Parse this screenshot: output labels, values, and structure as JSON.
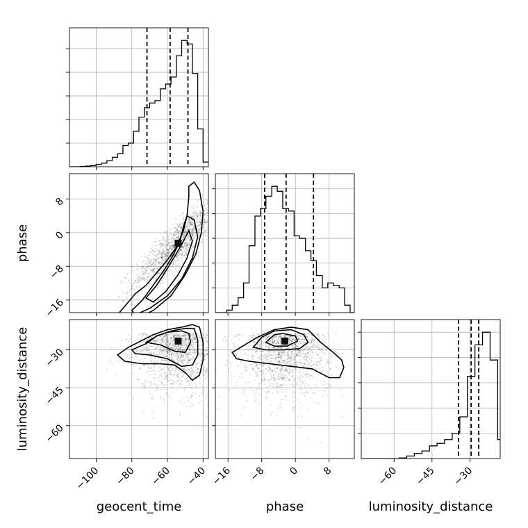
{
  "chart_data": {
    "type": "corner",
    "parameters": [
      "geocent_time",
      "phase",
      "luminosity_distance"
    ],
    "axes": {
      "geocent_time": {
        "range": [
          -115,
          -37
        ],
        "ticks": [
          -100,
          -80,
          -60,
          -40
        ],
        "tick_labels": [
          "−100",
          "−80",
          "−60",
          "−40"
        ],
        "quantiles": [
          -71.5,
          -58.5,
          -48.5
        ],
        "mode": -54
      },
      "phase": {
        "range": [
          -19,
          14
        ],
        "ticks": [
          -16,
          -8,
          0,
          8
        ],
        "tick_labels": [
          "−16",
          "−8",
          "0",
          "8"
        ],
        "quantiles": [
          -7.3,
          -2.2,
          4.3
        ],
        "mode": -2.5
      },
      "luminosity_distance": {
        "range": [
          -73,
          -18
        ],
        "ticks": [
          -60,
          -45,
          -30
        ],
        "tick_labels": [
          "−60",
          "−45",
          "−30"
        ],
        "quantiles": [
          -34.5,
          -29.5,
          -26.5
        ],
        "mode": -26.5
      }
    },
    "histograms": {
      "geocent_time": {
        "edges": [
          -115,
          -112,
          -109,
          -106,
          -103,
          -100,
          -97,
          -94,
          -91,
          -88,
          -85,
          -82,
          -79,
          -76,
          -73,
          -70,
          -67,
          -64,
          -61,
          -58,
          -55,
          -52,
          -49,
          -46,
          -43,
          -40,
          -37
        ],
        "counts": [
          0,
          0,
          1,
          3,
          5,
          10,
          15,
          25,
          40,
          55,
          90,
          100,
          150,
          210,
          250,
          270,
          280,
          330,
          350,
          380,
          470,
          535,
          520,
          395,
          160,
          20
        ]
      },
      "phase": {
        "edges": [
          -19,
          -17.6,
          -16.3,
          -15,
          -13.6,
          -12.3,
          -11,
          -9.6,
          -8.3,
          -7,
          -5.6,
          -4.3,
          -3,
          -1.6,
          -0.3,
          1,
          2.4,
          3.7,
          5,
          6.4,
          7.7,
          9,
          10.4,
          11.7,
          13,
          14.3
        ],
        "counts": [
          0,
          0,
          10,
          30,
          60,
          120,
          270,
          390,
          420,
          470,
          510,
          490,
          420,
          410,
          310,
          300,
          250,
          210,
          150,
          100,
          120,
          110,
          100,
          30,
          0
        ]
      },
      "luminosity_distance": {
        "edges": [
          -73,
          -70,
          -67,
          -64,
          -61,
          -58,
          -55,
          -52,
          -49,
          -46,
          -43,
          -40,
          -37,
          -34,
          -31,
          -28,
          -25,
          -22,
          -19,
          -16
        ],
        "counts": [
          0,
          0,
          0,
          0,
          0,
          5,
          20,
          40,
          60,
          100,
          120,
          150,
          200,
          330,
          650,
          900,
          1000,
          780,
          150
        ]
      }
    },
    "contours": {
      "phase_vs_geocent_time": {
        "levels": [
          [
            [
              -88,
              -19.5
            ],
            [
              -82,
              -16.5
            ],
            [
              -78,
              -14.5
            ],
            [
              -72,
              -12.5
            ],
            [
              -66,
              -9.5
            ],
            [
              -60,
              -6.5
            ],
            [
              -55,
              -3.5
            ],
            [
              -51,
              0.5
            ],
            [
              -49,
              4
            ],
            [
              -48,
              8.5
            ],
            [
              -48,
              11
            ],
            [
              -45,
              12
            ],
            [
              -42,
              10
            ],
            [
              -40,
              5
            ],
            [
              -41,
              0
            ],
            [
              -44,
              -5
            ],
            [
              -50,
              -10
            ],
            [
              -58,
              -15
            ],
            [
              -68,
              -18.5
            ],
            [
              -78,
              -20.5
            ],
            [
              -85,
              -21
            ],
            [
              -88,
              -19.5
            ]
          ],
          [
            [
              -80,
              -18.5
            ],
            [
              -74,
              -16
            ],
            [
              -68,
              -12.5
            ],
            [
              -62,
              -9
            ],
            [
              -57,
              -5.5
            ],
            [
              -53,
              -2
            ],
            [
              -51,
              1.5
            ],
            [
              -49,
              4
            ],
            [
              -45,
              3
            ],
            [
              -43,
              -1
            ],
            [
              -46,
              -6
            ],
            [
              -52,
              -11
            ],
            [
              -60,
              -15
            ],
            [
              -70,
              -18
            ],
            [
              -78,
              -19.5
            ],
            [
              -80,
              -18.5
            ]
          ],
          [
            [
              -72,
              -15.5
            ],
            [
              -66,
              -12.5
            ],
            [
              -60,
              -8.5
            ],
            [
              -55,
              -5
            ],
            [
              -51,
              -2
            ],
            [
              -48,
              0.5
            ],
            [
              -46,
              -2
            ],
            [
              -49,
              -6
            ],
            [
              -54,
              -10
            ],
            [
              -61,
              -14
            ],
            [
              -68,
              -16.5
            ],
            [
              -72,
              -15.5
            ]
          ]
        ]
      },
      "luminosity_distance_vs_geocent_time": {
        "levels": [
          [
            [
              -88,
              -32
            ],
            [
              -82,
              -29
            ],
            [
              -75,
              -26.5
            ],
            [
              -68,
              -24
            ],
            [
              -60,
              -22
            ],
            [
              -52,
              -21
            ],
            [
              -46,
              -20
            ],
            [
              -42,
              -21
            ],
            [
              -40,
              -27
            ],
            [
              -40,
              -34
            ],
            [
              -42,
              -40
            ],
            [
              -46,
              -42
            ],
            [
              -50,
              -39
            ],
            [
              -56,
              -36
            ],
            [
              -64,
              -35.5
            ],
            [
              -74,
              -35.5
            ],
            [
              -84,
              -34.5
            ],
            [
              -88,
              -32
            ]
          ],
          [
            [
              -80,
              -30
            ],
            [
              -72,
              -27.5
            ],
            [
              -66,
              -24.5
            ],
            [
              -58,
              -22.5
            ],
            [
              -50,
              -21.5
            ],
            [
              -45,
              -21.5
            ],
            [
              -43,
              -26
            ],
            [
              -43,
              -32
            ],
            [
              -46,
              -36
            ],
            [
              -52,
              -36.5
            ],
            [
              -60,
              -33.5
            ],
            [
              -70,
              -32
            ],
            [
              -78,
              -31.5
            ],
            [
              -80,
              -30
            ]
          ],
          [
            [
              -72,
              -27
            ],
            [
              -66,
              -24.5
            ],
            [
              -60,
              -23
            ],
            [
              -52,
              -22.5
            ],
            [
              -48,
              -23.5
            ],
            [
              -47,
              -27
            ],
            [
              -50,
              -31
            ],
            [
              -56,
              -30.5
            ],
            [
              -64,
              -28
            ],
            [
              -72,
              -27
            ]
          ]
        ]
      },
      "luminosity_distance_vs_phase": {
        "levels": [
          [
            [
              -15,
              -31
            ],
            [
              -12,
              -28
            ],
            [
              -9,
              -25
            ],
            [
              -5,
              -22
            ],
            [
              -1,
              -21
            ],
            [
              3,
              -22
            ],
            [
              6,
              -27
            ],
            [
              9,
              -31
            ],
            [
              11,
              -34
            ],
            [
              11.5,
              -37
            ],
            [
              10.5,
              -41
            ],
            [
              8,
              -41
            ],
            [
              4,
              -37.5
            ],
            [
              -1,
              -36.5
            ],
            [
              -6,
              -35.5
            ],
            [
              -11,
              -34.5
            ],
            [
              -14,
              -33.5
            ],
            [
              -15,
              -31
            ]
          ],
          [
            [
              -10,
              -29
            ],
            [
              -8,
              -25
            ],
            [
              -5,
              -22.5
            ],
            [
              -1,
              -22
            ],
            [
              2,
              -24
            ],
            [
              3,
              -27
            ],
            [
              1,
              -29.5
            ],
            [
              -3,
              -30
            ],
            [
              -7,
              -30
            ],
            [
              -10,
              -29
            ]
          ],
          [
            [
              -7,
              -27
            ],
            [
              -5,
              -24
            ],
            [
              -3,
              -23.5
            ],
            [
              0,
              -24.5
            ],
            [
              0.5,
              -26.5
            ],
            [
              -2,
              -28.5
            ],
            [
              -5,
              -28.5
            ],
            [
              -7,
              -27
            ]
          ]
        ]
      }
    },
    "scatter": true,
    "grid": true
  }
}
